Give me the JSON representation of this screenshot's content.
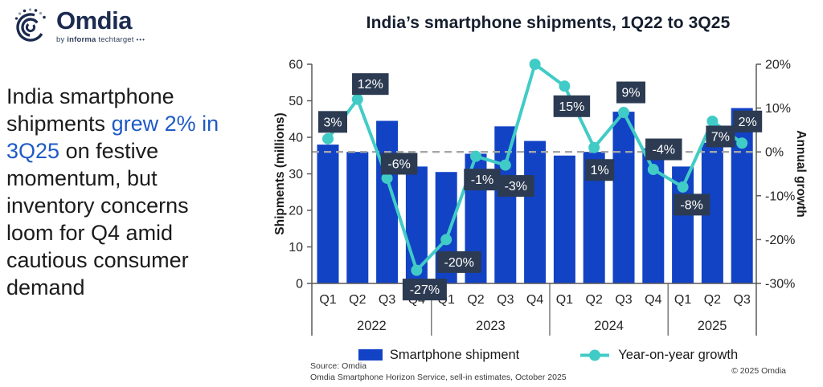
{
  "logo": {
    "name": "Omdia",
    "tagline_by": "by ",
    "tagline_informa": "informa",
    "tagline_rest": " techtarget ",
    "tagline_dots": "•••"
  },
  "summary": {
    "part1": "India smartphone\nshipments ",
    "highlight": "grew 2% in\n3Q25",
    "part2": " on festive\nmomentum, but\ninventory concerns\nloom for Q4 amid\ncautious consumer\ndemand"
  },
  "colors": {
    "bar_blue": "#1243c5",
    "line_teal": "#41cbc6",
    "label_box_navy": "#2c3b52",
    "highlight_blue": "#1e5bc6",
    "logo_navy": "#1c2b50"
  },
  "chart_data": {
    "type": "bar+line combo",
    "title": "India’s smartphone shipments, 1Q22 to 3Q25",
    "quarters": [
      "Q1",
      "Q2",
      "Q3",
      "Q4",
      "Q1",
      "Q2",
      "Q3",
      "Q4",
      "Q1",
      "Q2",
      "Q3",
      "Q4",
      "Q1",
      "Q2",
      "Q3"
    ],
    "years": [
      {
        "label": "2022",
        "quarters": 4
      },
      {
        "label": "2023",
        "quarters": 4
      },
      {
        "label": "2024",
        "quarters": 4
      },
      {
        "label": "2025",
        "quarters": 3
      }
    ],
    "series": [
      {
        "name": "Smartphone shipment",
        "type": "bar",
        "axis": "left",
        "color": "#1243c5",
        "values": [
          38,
          36,
          44.5,
          32,
          30.5,
          35.5,
          43,
          39,
          35,
          36,
          47,
          37,
          32,
          38.5,
          48
        ]
      },
      {
        "name": "Year-on-year growth",
        "type": "line",
        "axis": "right",
        "color": "#41cbc6",
        "values": [
          3,
          12,
          -6,
          -27,
          -20,
          -1,
          -3,
          20,
          15,
          1,
          9,
          -4,
          -8,
          7,
          2
        ],
        "point_labels": [
          "3%",
          "12%",
          "-6%",
          "-27%",
          "-20%",
          "-1%",
          "-3%",
          null,
          "15%",
          "1%",
          "9%",
          "-4%",
          "-8%",
          "7%",
          "2%"
        ]
      }
    ],
    "left_axis": {
      "title": "Shipments (millions)",
      "min": 0,
      "max": 60,
      "step": 10,
      "tick_labels": [
        "0",
        "10",
        "20",
        "30",
        "40",
        "50",
        "60"
      ]
    },
    "right_axis": {
      "title": "Annual growth",
      "min": -30,
      "max": 20,
      "step": 10,
      "tick_labels": [
        "-30%",
        "-20%",
        "-10%",
        "0%",
        "10%",
        "20%"
      ]
    },
    "zero_reference_line": true,
    "label_box_color": "#2c3b52",
    "legend_position": "bottom",
    "grid": false
  },
  "footer": {
    "source1": "Source: Omdia",
    "source2": "Omdia Smartphone Horizon Service, sell-in estimates, October 2025",
    "copyright": "© 2025 Omdia"
  }
}
